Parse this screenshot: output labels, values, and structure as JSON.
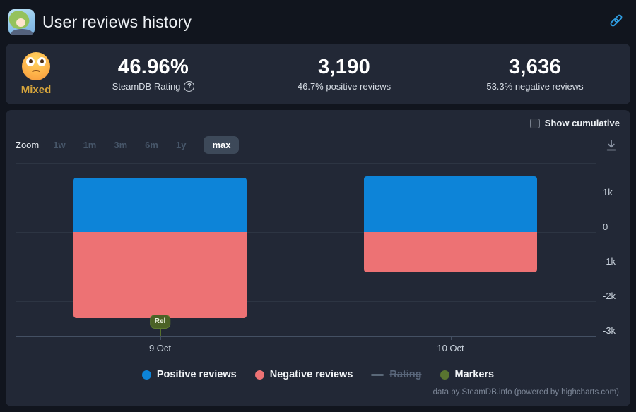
{
  "header": {
    "title": "User reviews history"
  },
  "summary": {
    "sentiment_label": "Mixed",
    "rating": {
      "value": "46.96%",
      "caption": "SteamDB Rating",
      "help_glyph": "?"
    },
    "positive": {
      "value": "3,190",
      "caption": "46.7% positive reviews"
    },
    "negative": {
      "value": "3,636",
      "caption": "53.3% negative reviews"
    }
  },
  "toolbar": {
    "show_cumulative": "Show cumulative",
    "zoom_label": "Zoom",
    "zoom_options": [
      {
        "label": "1w",
        "state": "disabled"
      },
      {
        "label": "1m",
        "state": "disabled"
      },
      {
        "label": "3m",
        "state": "disabled"
      },
      {
        "label": "6m",
        "state": "disabled"
      },
      {
        "label": "1y",
        "state": "disabled"
      },
      {
        "label": "max",
        "state": "selected"
      }
    ]
  },
  "chart_data": {
    "type": "bar",
    "title": "",
    "categories": [
      "9 Oct",
      "10 Oct"
    ],
    "series": [
      {
        "name": "Positive reviews",
        "color": "#0d84d8",
        "values": [
          1570,
          1620
        ]
      },
      {
        "name": "Negative reviews",
        "color": "#ed7274",
        "values": [
          -2480,
          -1156
        ]
      }
    ],
    "markers": [
      {
        "label": "Rel",
        "category": "9 Oct",
        "color": "#4b6226"
      }
    ],
    "ylim": [
      -3000,
      2000
    ],
    "ytick_step": 1000,
    "yticks": [
      {
        "value": 1000,
        "label": "1k"
      },
      {
        "value": 0,
        "label": "0"
      },
      {
        "value": -1000,
        "label": "-1k"
      },
      {
        "value": -2000,
        "label": "-2k"
      },
      {
        "value": -3000,
        "label": "-3k"
      }
    ],
    "grid": true,
    "legend_position": "bottom",
    "legend": [
      {
        "label": "Positive reviews",
        "color": "#0d84d8",
        "marker": "circle",
        "active": true
      },
      {
        "label": "Negative reviews",
        "color": "#ed7274",
        "marker": "circle",
        "active": true
      },
      {
        "label": "Rating",
        "color": "#5a6878",
        "marker": "dash",
        "active": false
      },
      {
        "label": "Markers",
        "color": "#597430",
        "marker": "circle",
        "active": true
      }
    ]
  },
  "credits": "data by SteamDB.info (powered by highcharts.com)"
}
